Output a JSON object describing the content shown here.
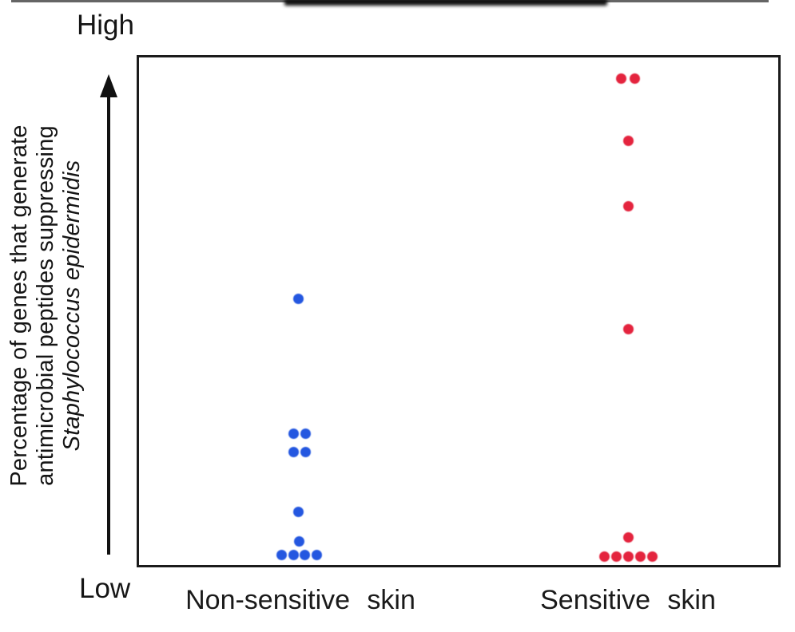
{
  "figure": {
    "y_axis": {
      "label_lines": [
        "Percentage of genes that generate",
        "antimicrobial peptides suppressing",
        "Staphylococcus epidermidis"
      ],
      "italic_line_index": 2,
      "high": "High",
      "low": "Low"
    },
    "x_axis": {
      "categories": [
        "Non-sensitive skin",
        "Sensitive skin"
      ]
    }
  },
  "chart_data": {
    "type": "scatter",
    "subtype": "categorical-dot-plot",
    "title": "",
    "xlabel": "",
    "ylabel": "Percentage of genes that generate antimicrobial peptides suppressing Staphylococcus epidermidis",
    "ylabel_italic_segment": "Staphylococcus epidermidis",
    "y_scale": {
      "type": "qualitative",
      "low_label": "Low",
      "high_label": "High",
      "range": [
        0,
        1
      ]
    },
    "categories": [
      "Non-sensitive skin",
      "Sensitive skin"
    ],
    "legend": "none",
    "grid": false,
    "colors": {
      "non_sensitive": "#2457E0",
      "sensitive": "#E4243E"
    },
    "point_counts": {
      "Non-sensitive skin": 11,
      "Sensitive skin": 11
    },
    "series": [
      {
        "name": "Non-sensitive skin",
        "color": "#2457E0",
        "x_frac": 0.25,
        "points": [
          {
            "dx": -1,
            "v": 0.525
          },
          {
            "dx": -7,
            "v": 0.259
          },
          {
            "dx": 8,
            "v": 0.259
          },
          {
            "dx": -7,
            "v": 0.223
          },
          {
            "dx": 8,
            "v": 0.223
          },
          {
            "dx": -1,
            "v": 0.105
          },
          {
            "dx": 0,
            "v": 0.047
          },
          {
            "dx": -22,
            "v": 0.019
          },
          {
            "dx": -7,
            "v": 0.019
          },
          {
            "dx": 7,
            "v": 0.019
          },
          {
            "dx": 22,
            "v": 0.019
          }
        ]
      },
      {
        "name": "Sensitive skin",
        "color": "#E4243E",
        "x_frac": 0.765,
        "points": [
          {
            "dx": -9,
            "v": 0.958
          },
          {
            "dx": 8,
            "v": 0.958
          },
          {
            "dx": 0,
            "v": 0.835
          },
          {
            "dx": 0,
            "v": 0.706
          },
          {
            "dx": 0,
            "v": 0.464
          },
          {
            "dx": 0,
            "v": 0.055
          },
          {
            "dx": -30,
            "v": 0.017
          },
          {
            "dx": -15,
            "v": 0.017
          },
          {
            "dx": 0,
            "v": 0.017
          },
          {
            "dx": 15,
            "v": 0.017
          },
          {
            "dx": 30,
            "v": 0.017
          }
        ]
      }
    ]
  }
}
